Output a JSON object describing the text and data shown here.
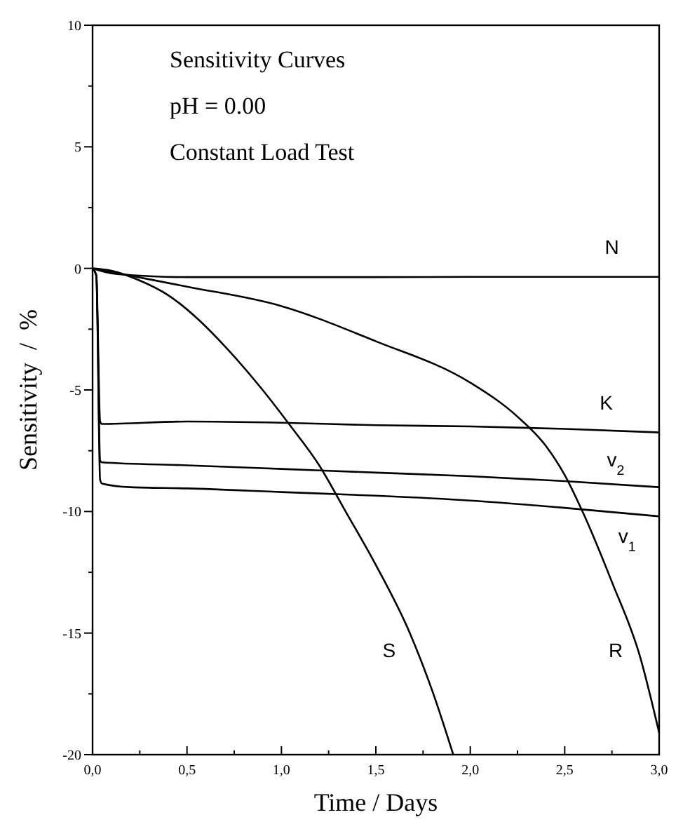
{
  "chart_data": {
    "type": "line",
    "title": "Sensitivity Curves",
    "subtitle": "pH = 0.00",
    "annotations": [
      "Constant Load Test"
    ],
    "xlabel": "Time / Days",
    "ylabel": "Sensitivity  /  %",
    "xlim": [
      0,
      3
    ],
    "ylim": [
      -20,
      10
    ],
    "xticks": [
      {
        "value": 0,
        "label": "0,0"
      },
      {
        "value": 0.25,
        "label": null
      },
      {
        "value": 0.5,
        "label": "0,5"
      },
      {
        "value": 0.75,
        "label": null
      },
      {
        "value": 1,
        "label": "1,0"
      },
      {
        "value": 1.25,
        "label": null
      },
      {
        "value": 1.5,
        "label": "1,5"
      },
      {
        "value": 1.75,
        "label": null
      },
      {
        "value": 2,
        "label": "2,0"
      },
      {
        "value": 2.25,
        "label": null
      },
      {
        "value": 2.5,
        "label": "2,5"
      },
      {
        "value": 2.75,
        "label": null
      },
      {
        "value": 3,
        "label": "3,0"
      }
    ],
    "yticks": [
      10,
      {
        "value": 7.5,
        "label": null
      },
      5,
      {
        "value": 2.5,
        "label": null
      },
      0,
      {
        "value": -2.5,
        "label": null
      },
      -5,
      {
        "value": -7.5,
        "label": null
      },
      -10,
      {
        "value": -12.5,
        "label": null
      },
      -15,
      {
        "value": -17.5,
        "label": null
      },
      -20
    ],
    "grid": false,
    "marker": "none",
    "line_style": "solid",
    "series": [
      {
        "name": "N",
        "color": "#000000",
        "x": [
          0,
          0.1,
          0.3,
          0.5,
          1,
          1.5,
          2,
          2.5,
          3
        ],
        "values": [
          0,
          -0.2,
          -0.32,
          -0.36,
          -0.36,
          -0.36,
          -0.35,
          -0.35,
          -0.35
        ]
      },
      {
        "name": "K",
        "color": "#000000",
        "x": [
          0,
          0.02,
          0.04,
          0.05,
          0.5,
          1,
          1.5,
          2,
          2.5,
          3
        ],
        "values": [
          0,
          -0.3,
          -6.3,
          -6.4,
          -6.3,
          -6.35,
          -6.45,
          -6.5,
          -6.6,
          -6.75
        ]
      },
      {
        "name": "v$_{2}$",
        "color": "#000000",
        "x": [
          0,
          0.02,
          0.04,
          0.05,
          0.5,
          1,
          1.5,
          2,
          2.5,
          3
        ],
        "values": [
          0,
          -0.3,
          -7.9,
          -7.98,
          -8.1,
          -8.25,
          -8.4,
          -8.55,
          -8.75,
          -9
        ]
      },
      {
        "name": "v$_{1}$",
        "color": "#000000",
        "x": [
          0,
          0.02,
          0.04,
          0.05,
          0.2,
          0.5,
          1,
          1.5,
          2,
          2.5,
          3
        ],
        "values": [
          0,
          -0.3,
          -8.7,
          -8.85,
          -9,
          -9.05,
          -9.2,
          -9.35,
          -9.55,
          -9.85,
          -10.2
        ]
      },
      {
        "name": "S",
        "color": "#000000",
        "x": [
          0,
          0.1,
          0.25,
          0.4,
          0.56,
          0.7,
          0.89,
          1.04,
          1.2,
          1.34,
          1.5,
          1.68,
          1.8,
          1.91
        ],
        "values": [
          0,
          -0.1,
          -0.5,
          -1.1,
          -2.1,
          -3.2,
          -4.9,
          -6.4,
          -8.1,
          -10,
          -12.2,
          -15,
          -17.4,
          -20
        ]
      },
      {
        "name": "R",
        "color": "#000000",
        "x": [
          0,
          0.2,
          0.5,
          1,
          1.5,
          2,
          2.25,
          2.4,
          2.5,
          2.6,
          2.75,
          2.9,
          3
        ],
        "values": [
          0,
          -0.3,
          -0.75,
          -1.55,
          -3,
          -4.7,
          -6.1,
          -7.3,
          -8.5,
          -10.1,
          -12.9,
          -16,
          -19.1
        ]
      }
    ]
  }
}
